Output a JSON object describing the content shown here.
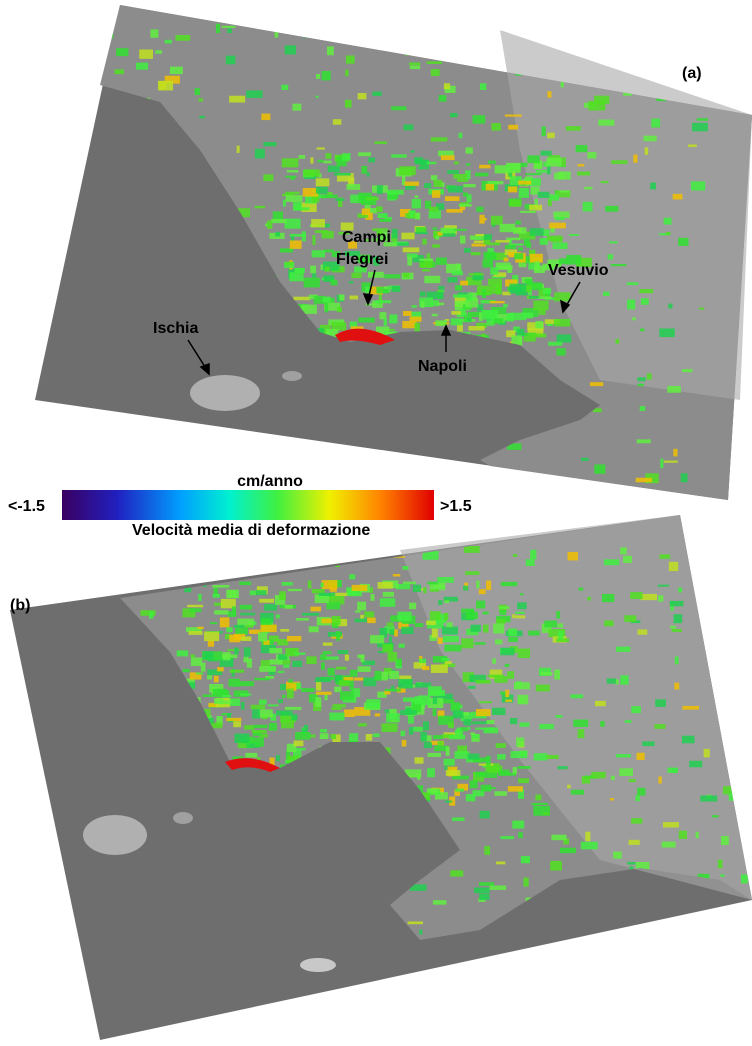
{
  "panel_a": {
    "label": "(a)",
    "places": {
      "campi_flegrei": [
        "Campi",
        "Flegrei"
      ],
      "vesuvio": "Vesuvio",
      "ischia": "Ischia",
      "napoli": "Napoli"
    }
  },
  "colorbar": {
    "unit": "cm/anno",
    "min_label": "<-1.5",
    "max_label": ">1.5",
    "caption": "Velocità media di deformazione"
  },
  "panel_b": {
    "label": "(b)"
  }
}
